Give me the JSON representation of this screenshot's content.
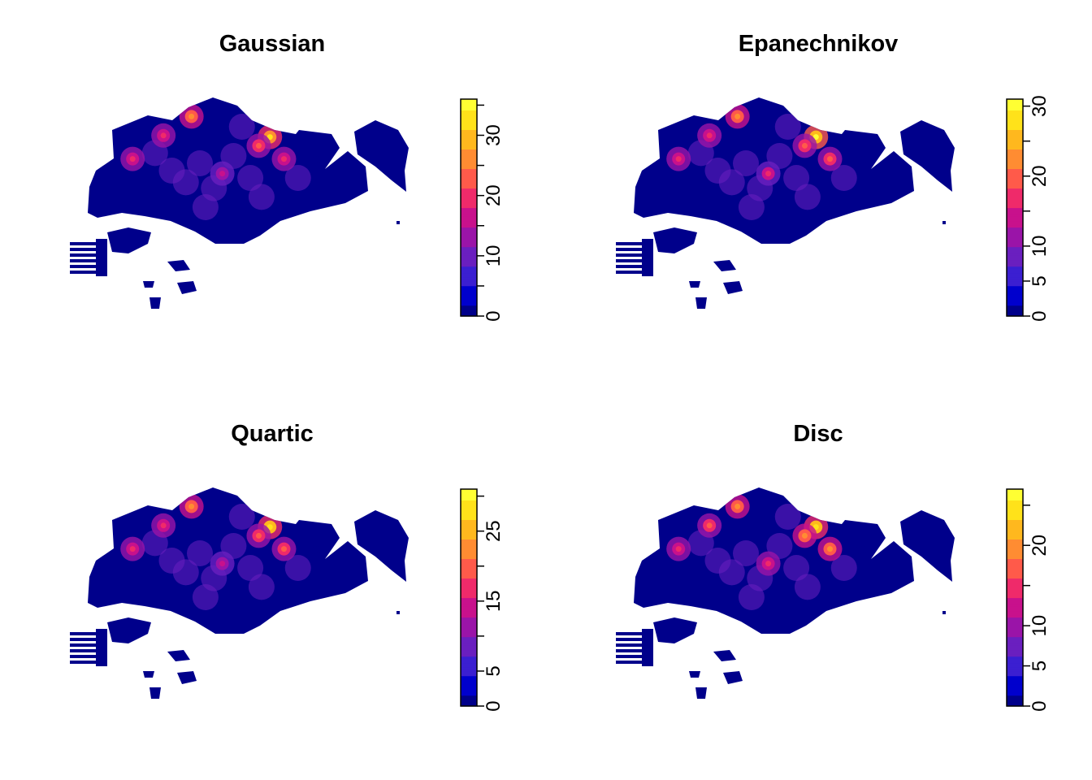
{
  "figure": {
    "palette": [
      "#00008b",
      "#0000cd",
      "#3b1fd1",
      "#6a1fbf",
      "#9a14a8",
      "#c8118c",
      "#ef2a6a",
      "#ff5a4a",
      "#ff8c32",
      "#ffb81e",
      "#ffe21a",
      "#ffff33"
    ],
    "land_color": "#00008b"
  },
  "chart_data": [
    {
      "type": "heatmap",
      "title": "Gaussian",
      "colorbar": {
        "zlim": [
          0,
          36
        ],
        "ticks": [
          0,
          5,
          10,
          15,
          20,
          25,
          30,
          35
        ],
        "labels": [
          "0",
          "10",
          "20",
          "30"
        ]
      },
      "hotspots": [
        {
          "x": 0.37,
          "y": 0.13,
          "v": 0.7
        },
        {
          "x": 0.27,
          "y": 0.26,
          "v": 0.55
        },
        {
          "x": 0.16,
          "y": 0.42,
          "v": 0.55
        },
        {
          "x": 0.65,
          "y": 0.27,
          "v": 0.9
        },
        {
          "x": 0.61,
          "y": 0.33,
          "v": 0.6
        },
        {
          "x": 0.7,
          "y": 0.42,
          "v": 0.55
        },
        {
          "x": 0.48,
          "y": 0.52,
          "v": 0.45
        }
      ]
    },
    {
      "type": "heatmap",
      "title": "Epanechnikov",
      "colorbar": {
        "zlim": [
          0,
          31
        ],
        "ticks": [
          0,
          5,
          10,
          15,
          20,
          25,
          30
        ],
        "labels": [
          "0",
          "5",
          "10",
          "20",
          "30"
        ]
      },
      "hotspots": [
        {
          "x": 0.37,
          "y": 0.13,
          "v": 0.75
        },
        {
          "x": 0.27,
          "y": 0.26,
          "v": 0.55
        },
        {
          "x": 0.16,
          "y": 0.42,
          "v": 0.55
        },
        {
          "x": 0.65,
          "y": 0.27,
          "v": 1.0
        },
        {
          "x": 0.61,
          "y": 0.33,
          "v": 0.65
        },
        {
          "x": 0.7,
          "y": 0.42,
          "v": 0.6
        },
        {
          "x": 0.48,
          "y": 0.52,
          "v": 0.5
        }
      ]
    },
    {
      "type": "heatmap",
      "title": "Quartic",
      "colorbar": {
        "zlim": [
          0,
          31
        ],
        "ticks": [
          0,
          5,
          10,
          15,
          20,
          25,
          30
        ],
        "labels": [
          "0",
          "5",
          "15",
          "25"
        ]
      },
      "hotspots": [
        {
          "x": 0.37,
          "y": 0.13,
          "v": 0.75
        },
        {
          "x": 0.27,
          "y": 0.26,
          "v": 0.55
        },
        {
          "x": 0.16,
          "y": 0.42,
          "v": 0.55
        },
        {
          "x": 0.65,
          "y": 0.27,
          "v": 0.95
        },
        {
          "x": 0.61,
          "y": 0.33,
          "v": 0.6
        },
        {
          "x": 0.7,
          "y": 0.42,
          "v": 0.6
        },
        {
          "x": 0.48,
          "y": 0.52,
          "v": 0.45
        }
      ]
    },
    {
      "type": "heatmap",
      "title": "Disc",
      "colorbar": {
        "zlim": [
          0,
          27
        ],
        "ticks": [
          0,
          5,
          10,
          15,
          20,
          25
        ],
        "labels": [
          "0",
          "5",
          "10",
          "20"
        ]
      },
      "hotspots": [
        {
          "x": 0.37,
          "y": 0.13,
          "v": 0.75
        },
        {
          "x": 0.27,
          "y": 0.26,
          "v": 0.6
        },
        {
          "x": 0.16,
          "y": 0.42,
          "v": 0.55
        },
        {
          "x": 0.65,
          "y": 0.27,
          "v": 0.95
        },
        {
          "x": 0.61,
          "y": 0.33,
          "v": 0.7
        },
        {
          "x": 0.7,
          "y": 0.42,
          "v": 0.7
        },
        {
          "x": 0.48,
          "y": 0.52,
          "v": 0.55
        }
      ]
    }
  ]
}
